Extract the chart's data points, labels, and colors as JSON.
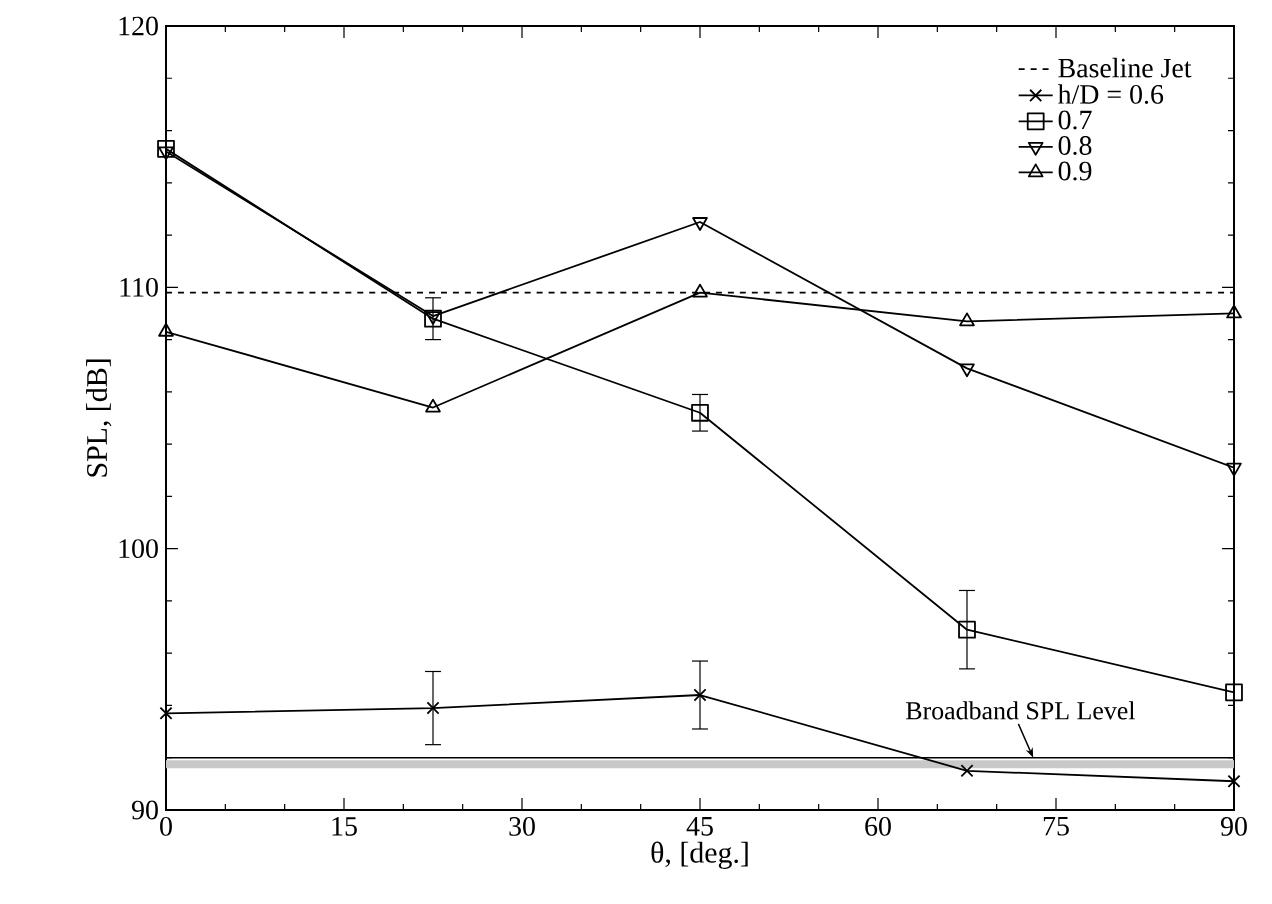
{
  "chart_data": {
    "type": "line",
    "xlabel": "θ, [deg.]",
    "ylabel": "SPL, [dB]",
    "x": [
      0,
      22.5,
      45,
      67.5,
      90
    ],
    "series": [
      {
        "name": "Baseline Jet",
        "color": "#000000",
        "values": [
          109.8,
          109.8,
          109.8,
          109.8,
          109.8
        ],
        "line_style": "dashed",
        "marker": "none"
      },
      {
        "name": "h/D = 0.6",
        "color": "#000000",
        "values": [
          93.7,
          93.9,
          94.4,
          91.5,
          91.1
        ],
        "marker": "cross",
        "errors": [
          null,
          1.4,
          1.3,
          null,
          null
        ]
      },
      {
        "name": "0.7",
        "color": "#000000",
        "values": [
          115.3,
          108.8,
          105.2,
          96.9,
          94.5
        ],
        "marker": "square",
        "errors": [
          null,
          0.8,
          0.7,
          1.5,
          null
        ]
      },
      {
        "name": "0.8",
        "color": "#000000",
        "values": [
          115.2,
          108.9,
          112.5,
          106.9,
          103.1
        ],
        "marker": "triangle_down"
      },
      {
        "name": "0.9",
        "color": "#000000",
        "values": [
          108.3,
          105.4,
          109.8,
          108.7,
          109.0
        ],
        "marker": "triangle"
      }
    ],
    "ref_lines": [
      {
        "axis": "y",
        "value": 92.0,
        "label": "Broadband SPL Level",
        "color": "#000000"
      }
    ],
    "bands": [
      {
        "axis": "y",
        "from": 91.6,
        "to": 91.9,
        "color": "#c8c8c8"
      }
    ],
    "xlim": [
      0,
      90
    ],
    "xticks": [
      0,
      15,
      30,
      45,
      60,
      75,
      90
    ],
    "ylim": [
      90,
      120
    ],
    "yticks": [
      90,
      100,
      110,
      120
    ],
    "grid": false,
    "legend": "top right",
    "line_style": "solid"
  }
}
